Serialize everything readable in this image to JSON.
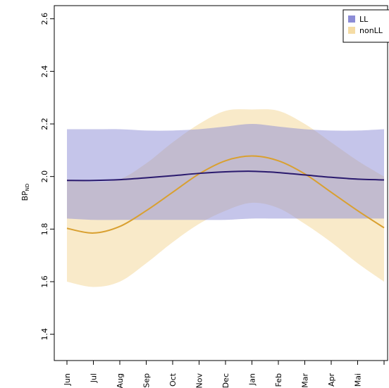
{
  "chart_data": {
    "type": "line",
    "title": "",
    "xlabel": "",
    "ylabel_main": "BP",
    "ylabel_sub": "ND",
    "categories": [
      "Jun",
      "Jul",
      "Aug",
      "Sep",
      "Oct",
      "Nov",
      "Dec",
      "Jan",
      "Feb",
      "Mar",
      "Apr",
      "Mai",
      ""
    ],
    "ylim": [
      1.3,
      2.65
    ],
    "yticks": [
      "1.4",
      "1.6",
      "1.8",
      "2.0",
      "2.2",
      "2.4",
      "2.6"
    ],
    "ytick_values": [
      1.4,
      1.6,
      1.8,
      2.0,
      2.2,
      2.4,
      2.6
    ],
    "grid": false,
    "legend_position": "top-right",
    "series": [
      {
        "name": "LL",
        "line_color": "#2a1a6e",
        "band_color": "#8c8cd6",
        "values": [
          1.985,
          1.985,
          1.988,
          1.995,
          2.003,
          2.012,
          2.018,
          2.02,
          2.015,
          2.006,
          1.997,
          1.99,
          1.987
        ],
        "lower": [
          1.84,
          1.835,
          1.835,
          1.835,
          1.835,
          1.835,
          1.835,
          1.84,
          1.84,
          1.84,
          1.84,
          1.84,
          1.84
        ],
        "upper": [
          2.18,
          2.18,
          2.18,
          2.175,
          2.175,
          2.18,
          2.19,
          2.2,
          2.19,
          2.18,
          2.175,
          2.175,
          2.18
        ]
      },
      {
        "name": "nonLL",
        "line_color": "#d9a030",
        "band_color": "#f5dca5",
        "values": [
          1.803,
          1.785,
          1.81,
          1.87,
          1.94,
          2.01,
          2.06,
          2.078,
          2.06,
          2.01,
          1.94,
          1.87,
          1.805
        ],
        "lower": [
          1.6,
          1.58,
          1.6,
          1.67,
          1.75,
          1.82,
          1.87,
          1.9,
          1.88,
          1.82,
          1.75,
          1.67,
          1.6
        ],
        "upper": [
          1.99,
          1.98,
          1.99,
          2.05,
          2.13,
          2.2,
          2.25,
          2.255,
          2.25,
          2.2,
          2.13,
          2.06,
          2.0
        ]
      }
    ]
  }
}
